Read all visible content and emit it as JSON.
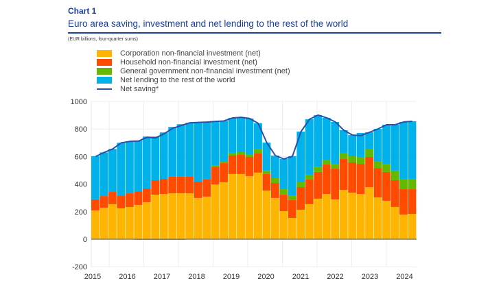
{
  "header": {
    "kicker": "Chart 1",
    "title": "Euro area saving, investment and net lending to the rest of the world",
    "units": "(EUR billions, four-quarter sums)"
  },
  "colors": {
    "corporation": "#ffb400",
    "household": "#ff4b00",
    "government": "#65b800",
    "net_lending": "#00b1ea",
    "net_saving": "#2a4fa8",
    "title": "#1a3f99"
  },
  "chart_data": {
    "type": "bar",
    "stacked": true,
    "title": "Euro area saving, investment and net lending to the rest of the world",
    "ylabel": "EUR billions, four-quarter sums",
    "xlabel": "",
    "ylim": [
      -200,
      1000
    ],
    "yticks": [
      1000,
      800,
      600,
      400,
      200,
      0,
      -200
    ],
    "xtick_labels": [
      "2015",
      "2016",
      "2017",
      "2018",
      "2019",
      "2020",
      "2021",
      "2022",
      "2023",
      "2024"
    ],
    "grid": true,
    "legend": "top-left",
    "series": [
      {
        "name": "Corporation non-financial investment (net)",
        "key": "corporation",
        "values": [
          209,
          229,
          254,
          224,
          234,
          249,
          269,
          323,
          328,
          333,
          333,
          333,
          299,
          309,
          398,
          413,
          473,
          473,
          458,
          483,
          353,
          299,
          204,
          154,
          214,
          254,
          294,
          328,
          289,
          358,
          338,
          328,
          378,
          303,
          279,
          234,
          179,
          184
        ]
      },
      {
        "name": "Household non-financial investment (net)",
        "key": "household",
        "values": [
          80,
          84,
          89,
          94,
          99,
          99,
          99,
          105,
          110,
          120,
          120,
          120,
          119,
          124,
          129,
          139,
          134,
          139,
          139,
          139,
          120,
          109,
          119,
          130,
          164,
          179,
          194,
          214,
          223,
          224,
          219,
          219,
          219,
          214,
          209,
          194,
          184,
          179
        ]
      },
      {
        "name": "General government non-financial investment (net)",
        "key": "government",
        "values": [
          0,
          0,
          0,
          0,
          0,
          -5,
          -5,
          -5,
          -5,
          -5,
          -5,
          0,
          0,
          0,
          10,
          10,
          20,
          20,
          20,
          30,
          25,
          35,
          40,
          34,
          35,
          35,
          39,
          35,
          35,
          45,
          45,
          50,
          55,
          50,
          59,
          70,
          75,
          75
        ]
      },
      {
        "name": "Net lending to the rest of the world",
        "key": "net_lending",
        "values": [
          313,
          317,
          312,
          382,
          377,
          369,
          377,
          317,
          337,
          362,
          382,
          392,
          430,
          417,
          318,
          296,
          253,
          253,
          259,
          189,
          203,
          164,
          219,
          284,
          368,
          403,
          374,
          304,
          304,
          164,
          154,
          174,
          124,
          234,
          284,
          333,
          413,
          418
        ]
      },
      {
        "name": "Net saving*",
        "key": "net_saving",
        "type": "line",
        "values": [
          600,
          630,
          655,
          700,
          710,
          712,
          740,
          735,
          765,
          805,
          825,
          845,
          848,
          850,
          855,
          858,
          880,
          885,
          876,
          841,
          701,
          607,
          582,
          602,
          781,
          871,
          901,
          881,
          851,
          791,
          756,
          751,
          776,
          801,
          831,
          831,
          851,
          856
        ]
      }
    ]
  }
}
